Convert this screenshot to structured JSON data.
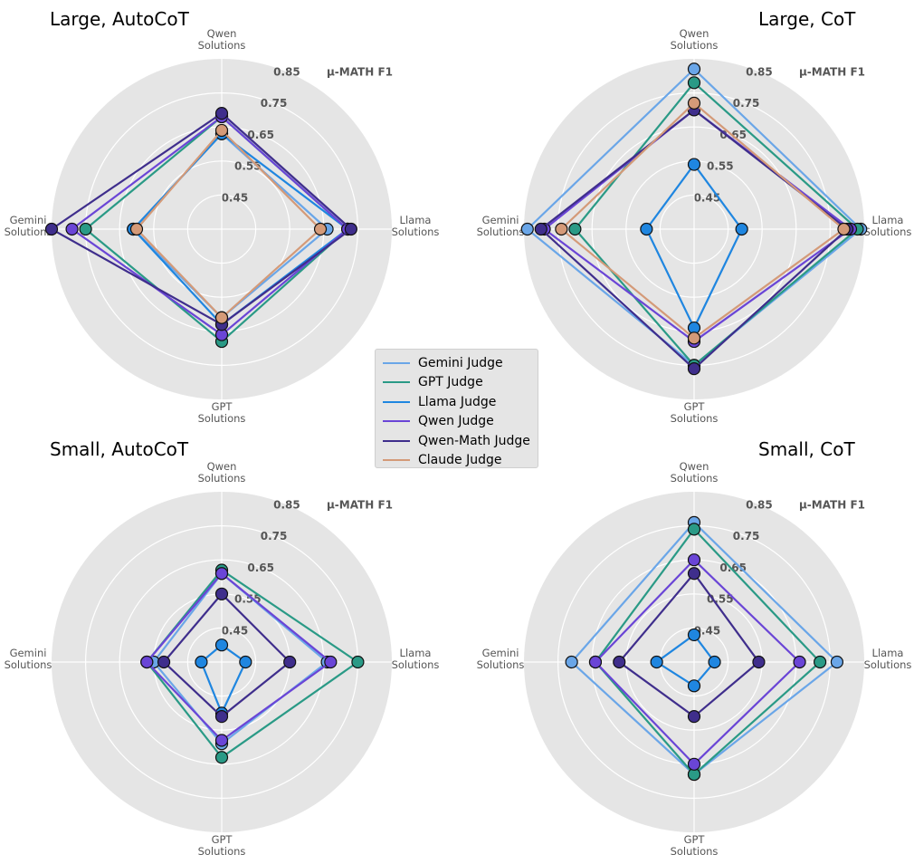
{
  "metric_label": "μ-MATH F1",
  "rings": [
    "0.45",
    "0.55",
    "0.65",
    "0.75",
    "0.85"
  ],
  "axes": [
    {
      "key": "qwen",
      "line1": "Qwen",
      "line2": "Solutions"
    },
    {
      "key": "llama",
      "line1": "Llama",
      "line2": "Solutions"
    },
    {
      "key": "gpt",
      "line1": "GPT",
      "line2": "Solutions"
    },
    {
      "key": "gemini",
      "line1": "Gemini",
      "line2": "Solutions"
    }
  ],
  "colors": {
    "Gemini Judge": "#6aa6e8",
    "GPT Judge": "#2a9a86",
    "Llama Judge": "#1f86e0",
    "Qwen Judge": "#6a45d6",
    "Qwen-Math Judge": "#3f2e8c",
    "Claude Judge": "#d49a78"
  },
  "legend": [
    "Gemini Judge",
    "GPT Judge",
    "Llama Judge",
    "Qwen Judge",
    "Qwen-Math Judge",
    "Claude Judge"
  ],
  "chart_data": [
    {
      "type": "radar",
      "title": "Large, AutoCoT",
      "rlim": [
        0.35,
        0.85
      ],
      "axis_order": [
        "Qwen Solutions",
        "Llama Solutions",
        "GPT Solutions",
        "Gemini Solutions"
      ],
      "series": [
        {
          "name": "Gemini Judge",
          "values": [
            0.63,
            0.66,
            0.61,
            0.61
          ]
        },
        {
          "name": "GPT Judge",
          "values": [
            0.68,
            0.72,
            0.68,
            0.75
          ]
        },
        {
          "name": "Llama Judge",
          "values": [
            0.63,
            0.72,
            0.63,
            0.61
          ]
        },
        {
          "name": "Qwen Judge",
          "values": [
            0.68,
            0.72,
            0.66,
            0.79
          ]
        },
        {
          "name": "Qwen-Math Judge",
          "values": [
            0.69,
            0.73,
            0.63,
            0.85
          ]
        },
        {
          "name": "Claude Judge",
          "values": [
            0.64,
            0.64,
            0.61,
            0.6
          ]
        }
      ]
    },
    {
      "type": "radar",
      "title": "Large, CoT",
      "rlim": [
        0.35,
        0.85
      ],
      "axis_order": [
        "Qwen Solutions",
        "Llama Solutions",
        "GPT Solutions",
        "Gemini Solutions"
      ],
      "series": [
        {
          "name": "Gemini Judge",
          "values": [
            0.82,
            0.84,
            0.75,
            0.84
          ]
        },
        {
          "name": "GPT Judge",
          "values": [
            0.78,
            0.83,
            0.75,
            0.7
          ]
        },
        {
          "name": "Llama Judge",
          "values": [
            0.54,
            0.49,
            0.64,
            0.49
          ]
        },
        {
          "name": "Qwen Judge",
          "values": [
            0.7,
            0.81,
            0.68,
            0.79
          ]
        },
        {
          "name": "Qwen-Math Judge",
          "values": [
            0.7,
            0.8,
            0.76,
            0.8
          ]
        },
        {
          "name": "Claude Judge",
          "values": [
            0.72,
            0.79,
            0.67,
            0.74
          ]
        }
      ]
    },
    {
      "type": "radar",
      "title": "Small, AutoCoT",
      "rlim": [
        0.35,
        0.85
      ],
      "axis_order": [
        "Qwen Solutions",
        "Llama Solutions",
        "GPT Solutions",
        "Gemini Solutions"
      ],
      "series": [
        {
          "name": "Gemini Judge",
          "values": [
            0.61,
            0.66,
            0.59,
            0.55
          ]
        },
        {
          "name": "GPT Judge",
          "values": [
            0.62,
            0.75,
            0.63,
            0.57
          ]
        },
        {
          "name": "Llama Judge",
          "values": [
            0.4,
            0.42,
            0.5,
            0.41
          ]
        },
        {
          "name": "Qwen Judge",
          "values": [
            0.61,
            0.67,
            0.58,
            0.57
          ]
        },
        {
          "name": "Qwen-Math Judge",
          "values": [
            0.55,
            0.55,
            0.51,
            0.52
          ]
        }
      ]
    },
    {
      "type": "radar",
      "title": "Small, CoT",
      "rlim": [
        0.35,
        0.85
      ],
      "axis_order": [
        "Qwen Solutions",
        "Llama Solutions",
        "GPT Solutions",
        "Gemini Solutions"
      ],
      "series": [
        {
          "name": "Gemini Judge",
          "values": [
            0.76,
            0.77,
            0.68,
            0.71
          ]
        },
        {
          "name": "GPT Judge",
          "values": [
            0.74,
            0.72,
            0.68,
            0.64
          ]
        },
        {
          "name": "Llama Judge",
          "values": [
            0.43,
            0.41,
            0.42,
            0.46
          ]
        },
        {
          "name": "Qwen Judge",
          "values": [
            0.65,
            0.66,
            0.65,
            0.64
          ]
        },
        {
          "name": "Qwen-Math Judge",
          "values": [
            0.61,
            0.54,
            0.51,
            0.57
          ]
        }
      ]
    }
  ]
}
